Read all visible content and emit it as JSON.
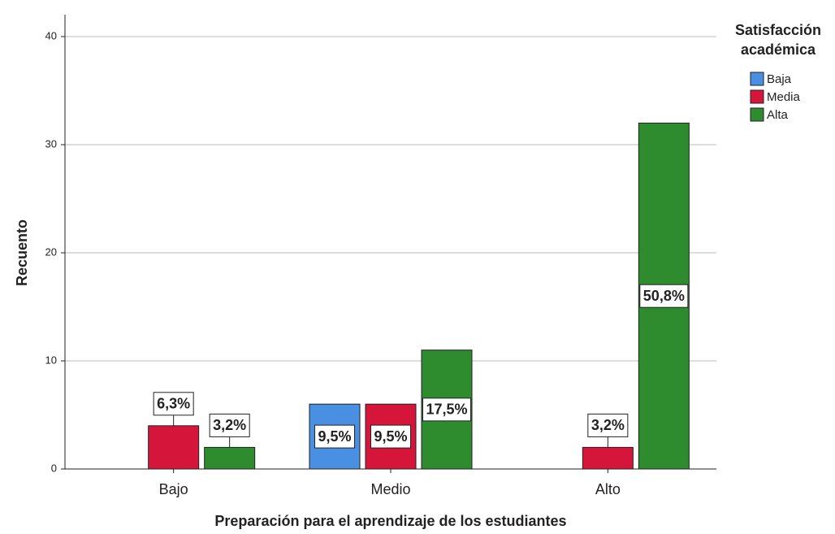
{
  "chart_data": {
    "type": "bar",
    "x_label": "Preparación para el aprendizaje de los estudiantes",
    "y_label": "Recuento",
    "legend_title": [
      "Satisfacción",
      "académica"
    ],
    "legend_position": "top-right",
    "categories": [
      "Bajo",
      "Medio",
      "Alto"
    ],
    "series": [
      {
        "name": "Baja",
        "color": "#4a90e2",
        "values": [
          null,
          6,
          null
        ],
        "percent_labels": [
          null,
          "9,5%",
          null
        ]
      },
      {
        "name": "Media",
        "color": "#d5163a",
        "values": [
          4,
          6,
          2
        ],
        "percent_labels": [
          "6,3%",
          "9,5%",
          "3,2%"
        ]
      },
      {
        "name": "Alta",
        "color": "#2e8b2e",
        "values": [
          2,
          11,
          32
        ],
        "percent_labels": [
          "3,2%",
          "17,5%",
          "50,8%"
        ]
      }
    ],
    "ylim": [
      0,
      40
    ],
    "yticks": [
      0,
      10,
      20,
      30,
      40
    ],
    "grid": true
  }
}
